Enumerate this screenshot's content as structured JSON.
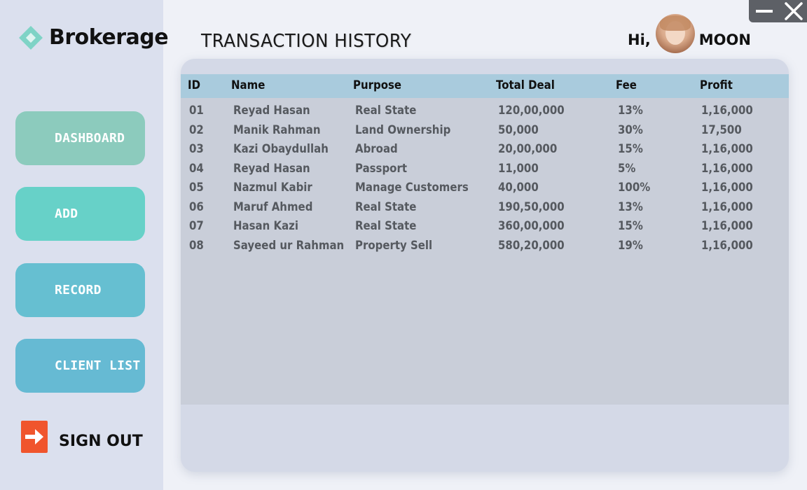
{
  "app": {
    "logo_text": "Brokerage"
  },
  "sidebar": {
    "items": [
      {
        "label": "DASHBOARD",
        "icon": "none"
      },
      {
        "label": "ADD",
        "icon": "none"
      },
      {
        "label": "RECORD",
        "icon": "none"
      },
      {
        "label": "CLIENT LIST",
        "icon": "none"
      }
    ],
    "signout_label": "SIGN OUT",
    "signout_icon": "sign-out-icon"
  },
  "header": {
    "title": "TRANSACTION HISTORY",
    "greeting": "Hi,",
    "username": "MOON"
  },
  "colors": {
    "sidebar_bg": "#dbe0ee",
    "dashboard": "#8ccbbd",
    "add": "#67d1c8",
    "record": "#66bfd1",
    "client_list": "#66bad3",
    "table_header": "#a9cbdd",
    "signout_accent": "#f0552d"
  },
  "table": {
    "columns": [
      "ID",
      "Name",
      "Purpose",
      "Total Deal",
      "Fee",
      "Profit"
    ],
    "rows": [
      [
        "01",
        "Reyad Hasan",
        "Real State",
        "120,00,000",
        "13%",
        "1,16,000"
      ],
      [
        "02",
        "Manik Rahman",
        "Land Ownership",
        "50,000",
        "30%",
        "17,500"
      ],
      [
        "03",
        "Kazi Obaydullah",
        "Abroad",
        "20,00,000",
        "15%",
        "1,16,000"
      ],
      [
        "04",
        "Reyad Hasan",
        "Passport",
        "11,000",
        "5%",
        "1,16,000"
      ],
      [
        "05",
        "Nazmul Kabir",
        "Manage Customers",
        "40,000",
        "100%",
        "1,16,000"
      ],
      [
        "06",
        "Maruf Ahmed",
        "Real State",
        "190,50,000",
        "13%",
        "1,16,000"
      ],
      [
        "07",
        "Hasan Kazi",
        "Real State",
        "360,00,000",
        "15%",
        "1,16,000"
      ],
      [
        "08",
        "Sayeed ur Rahman",
        "Property Sell",
        "580,20,000",
        "19%",
        "1,16,000"
      ]
    ]
  }
}
